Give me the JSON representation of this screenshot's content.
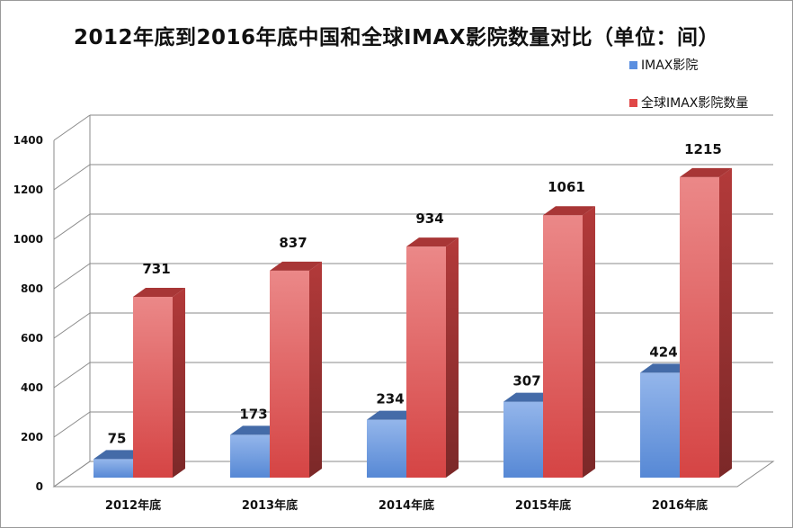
{
  "chart_data": {
    "type": "bar",
    "title": "2012年底到2016年底中国和全球IMAX影院数量对比（单位：间）",
    "categories": [
      "2012年底",
      "2013年底",
      "2014年底",
      "2015年底",
      "2016年底"
    ],
    "series": [
      {
        "name": "IMAX影院",
        "values": [
          75,
          173,
          234,
          307,
          424
        ],
        "color": "#5b8fe0"
      },
      {
        "name": "全球IMAX影院数量",
        "values": [
          731,
          837,
          934,
          1061,
          1215
        ],
        "color": "#e04848"
      }
    ],
    "ylim": [
      0,
      1400
    ],
    "yticks": [
      0,
      200,
      400,
      600,
      800,
      1000,
      1200,
      1400
    ],
    "grid": true,
    "legend": "top-right",
    "style": "3d-column"
  }
}
